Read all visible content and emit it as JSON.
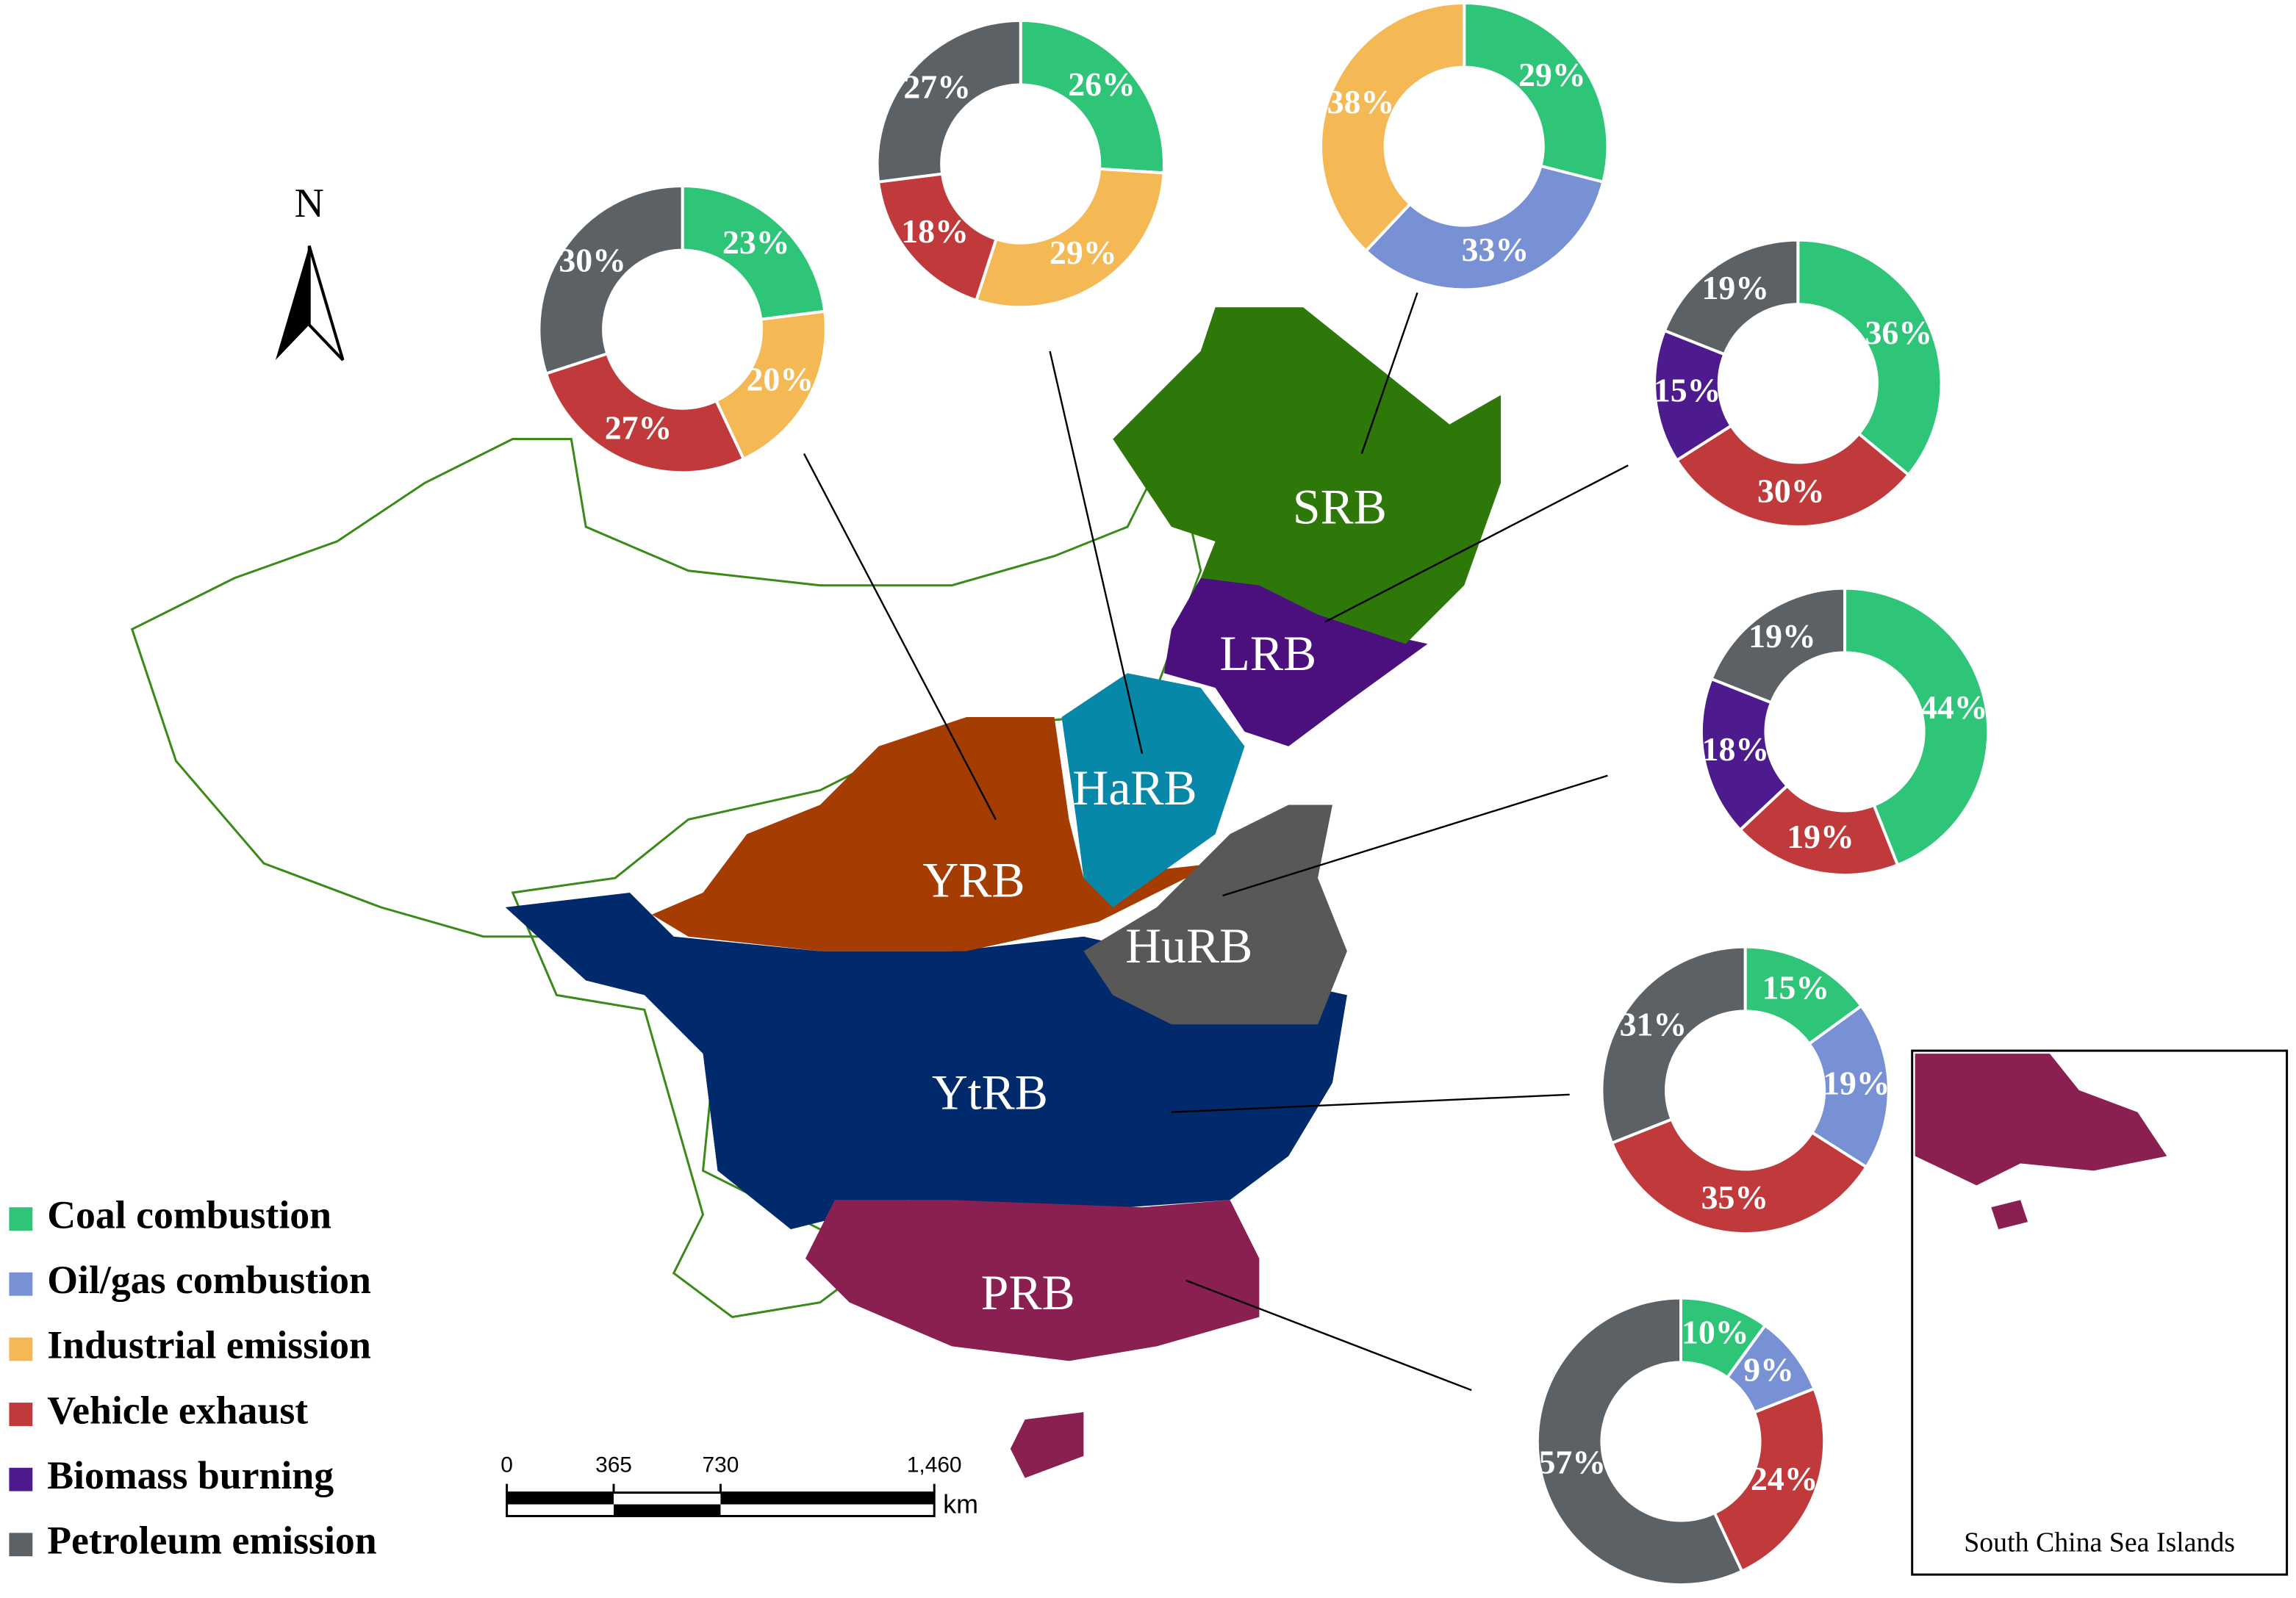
{
  "legend": {
    "names": [
      "Coal combustion",
      "Oil/gas combustion",
      "Industrial emission",
      "Vehicle exhaust",
      "Biomass burning",
      "Petroleum emission"
    ],
    "colors": [
      "#2fc578",
      "#7890d4",
      "#f4b955",
      "#c13a3b",
      "#4d1b8e",
      "#5c6166"
    ]
  },
  "map": {
    "north": "N",
    "regions": [
      {
        "label": "SRB",
        "color": "#2e780a"
      },
      {
        "label": "LRB",
        "color": "#4b0f7e"
      },
      {
        "label": "HaRB",
        "color": "#0788a8"
      },
      {
        "label": "YRB",
        "color": "#a53c02"
      },
      {
        "label": "HuRB",
        "color": "#585858"
      },
      {
        "label": "YtRB",
        "color": "#012a6c"
      },
      {
        "label": "PRB",
        "color": "#8a1f52"
      }
    ],
    "scale_bar": {
      "lim": [
        0,
        1460
      ],
      "ticks": [
        0,
        365,
        730,
        {
          "value": 1460,
          "label": "1,460"
        }
      ],
      "unit": "km"
    },
    "inset_label": "South China Sea Islands"
  },
  "chart_data": [
    {
      "type": "pie",
      "values": [
        29,
        33,
        38,
        null,
        null,
        null
      ],
      "value_labels": [
        "29%",
        "33%",
        "38%",
        null,
        null,
        null
      ]
    },
    {
      "type": "pie",
      "values": [
        36,
        null,
        null,
        30,
        15,
        19
      ],
      "value_labels": [
        "36%",
        null,
        null,
        "30%",
        "15%",
        "19%"
      ]
    },
    {
      "type": "pie",
      "values": [
        26,
        null,
        29,
        18,
        null,
        27
      ],
      "value_labels": [
        "26%",
        null,
        "29%",
        "18%",
        null,
        "27%"
      ]
    },
    {
      "type": "pie",
      "values": [
        23,
        null,
        20,
        27,
        null,
        30
      ],
      "value_labels": [
        "23%",
        null,
        "20%",
        "27%",
        null,
        "30%"
      ]
    },
    {
      "type": "pie",
      "values": [
        44,
        null,
        null,
        19,
        18,
        19
      ],
      "value_labels": [
        "44%",
        null,
        null,
        "19%",
        "18%",
        "19%"
      ]
    },
    {
      "type": "pie",
      "values": [
        15,
        19,
        null,
        35,
        null,
        31
      ],
      "value_labels": [
        "15%",
        "19%",
        null,
        "35%",
        null,
        "31%"
      ]
    },
    {
      "type": "pie",
      "values": [
        10,
        9,
        null,
        24,
        null,
        57
      ],
      "value_labels": [
        "10%",
        "9%",
        null,
        "24%",
        null,
        "57%"
      ]
    }
  ]
}
